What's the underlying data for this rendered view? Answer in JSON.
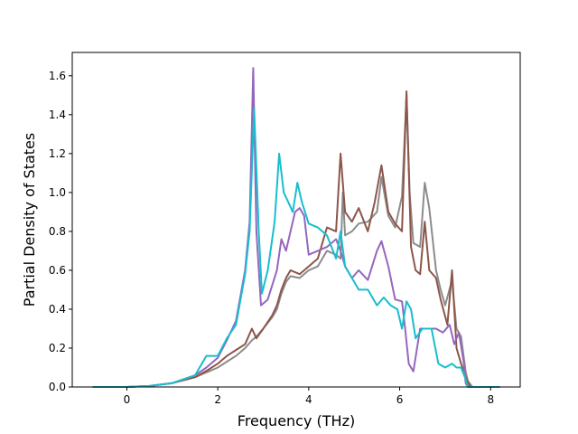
{
  "chart_data": {
    "type": "line",
    "title": "",
    "xlabel": "Frequency (THz)",
    "ylabel": "Partial Density of States",
    "xlim": [
      -1.2,
      8.65
    ],
    "ylim": [
      0.0,
      1.72
    ],
    "xticks": [
      0,
      2,
      4,
      6,
      8
    ],
    "yticks": [
      0.0,
      0.2,
      0.4,
      0.6,
      0.8,
      1.0,
      1.2,
      1.4,
      1.6
    ],
    "grid": false,
    "legend": "none",
    "series": [
      {
        "color": "#8c8c8c",
        "points": [
          [
            -0.75,
            0
          ],
          [
            0,
            0
          ],
          [
            0.5,
            0.005
          ],
          [
            1.0,
            0.02
          ],
          [
            1.5,
            0.05
          ],
          [
            1.8,
            0.08
          ],
          [
            2.0,
            0.1
          ],
          [
            2.2,
            0.13
          ],
          [
            2.4,
            0.16
          ],
          [
            2.6,
            0.2
          ],
          [
            2.75,
            0.24
          ],
          [
            2.85,
            0.26
          ],
          [
            3.0,
            0.3
          ],
          [
            3.2,
            0.36
          ],
          [
            3.3,
            0.4
          ],
          [
            3.4,
            0.48
          ],
          [
            3.5,
            0.54
          ],
          [
            3.6,
            0.57
          ],
          [
            3.8,
            0.56
          ],
          [
            4.0,
            0.6
          ],
          [
            4.2,
            0.62
          ],
          [
            4.4,
            0.7
          ],
          [
            4.6,
            0.68
          ],
          [
            4.7,
            0.66
          ],
          [
            4.75,
            1.0
          ],
          [
            4.8,
            0.78
          ],
          [
            4.95,
            0.8
          ],
          [
            5.1,
            0.84
          ],
          [
            5.3,
            0.85
          ],
          [
            5.5,
            0.9
          ],
          [
            5.6,
            1.08
          ],
          [
            5.75,
            0.88
          ],
          [
            5.9,
            0.82
          ],
          [
            6.05,
            0.98
          ],
          [
            6.15,
            1.5
          ],
          [
            6.22,
            1.0
          ],
          [
            6.3,
            0.74
          ],
          [
            6.45,
            0.72
          ],
          [
            6.55,
            1.05
          ],
          [
            6.65,
            0.92
          ],
          [
            6.8,
            0.6
          ],
          [
            6.9,
            0.5
          ],
          [
            7.0,
            0.42
          ],
          [
            7.15,
            0.55
          ],
          [
            7.25,
            0.3
          ],
          [
            7.35,
            0.26
          ],
          [
            7.45,
            0.08
          ],
          [
            7.5,
            0.03
          ],
          [
            7.6,
            0
          ],
          [
            8.2,
            0
          ]
        ]
      },
      {
        "color": "#8c564b",
        "points": [
          [
            -0.75,
            0
          ],
          [
            0,
            0
          ],
          [
            0.5,
            0.005
          ],
          [
            1.0,
            0.02
          ],
          [
            1.5,
            0.05
          ],
          [
            1.8,
            0.09
          ],
          [
            2.0,
            0.12
          ],
          [
            2.2,
            0.16
          ],
          [
            2.4,
            0.19
          ],
          [
            2.6,
            0.22
          ],
          [
            2.75,
            0.3
          ],
          [
            2.85,
            0.25
          ],
          [
            3.0,
            0.3
          ],
          [
            3.2,
            0.37
          ],
          [
            3.3,
            0.42
          ],
          [
            3.4,
            0.5
          ],
          [
            3.5,
            0.56
          ],
          [
            3.6,
            0.6
          ],
          [
            3.8,
            0.58
          ],
          [
            4.0,
            0.62
          ],
          [
            4.2,
            0.66
          ],
          [
            4.4,
            0.82
          ],
          [
            4.6,
            0.8
          ],
          [
            4.7,
            1.2
          ],
          [
            4.8,
            0.9
          ],
          [
            4.95,
            0.85
          ],
          [
            5.1,
            0.92
          ],
          [
            5.3,
            0.8
          ],
          [
            5.45,
            0.95
          ],
          [
            5.6,
            1.14
          ],
          [
            5.75,
            0.9
          ],
          [
            5.9,
            0.84
          ],
          [
            6.05,
            0.8
          ],
          [
            6.15,
            1.52
          ],
          [
            6.25,
            0.72
          ],
          [
            6.35,
            0.6
          ],
          [
            6.45,
            0.58
          ],
          [
            6.55,
            0.85
          ],
          [
            6.65,
            0.6
          ],
          [
            6.8,
            0.56
          ],
          [
            6.9,
            0.45
          ],
          [
            7.05,
            0.32
          ],
          [
            7.15,
            0.6
          ],
          [
            7.25,
            0.2
          ],
          [
            7.35,
            0.12
          ],
          [
            7.45,
            0.05
          ],
          [
            7.55,
            0
          ],
          [
            8.2,
            0
          ]
        ]
      },
      {
        "color": "#9467bd",
        "points": [
          [
            -0.75,
            0
          ],
          [
            0,
            0
          ],
          [
            0.5,
            0.005
          ],
          [
            1.0,
            0.02
          ],
          [
            1.5,
            0.06
          ],
          [
            1.75,
            0.1
          ],
          [
            2.0,
            0.15
          ],
          [
            2.2,
            0.24
          ],
          [
            2.4,
            0.34
          ],
          [
            2.6,
            0.6
          ],
          [
            2.7,
            0.85
          ],
          [
            2.78,
            1.64
          ],
          [
            2.85,
            0.8
          ],
          [
            2.95,
            0.42
          ],
          [
            3.1,
            0.45
          ],
          [
            3.3,
            0.6
          ],
          [
            3.4,
            0.76
          ],
          [
            3.5,
            0.7
          ],
          [
            3.6,
            0.8
          ],
          [
            3.7,
            0.9
          ],
          [
            3.8,
            0.92
          ],
          [
            3.9,
            0.88
          ],
          [
            4.0,
            0.68
          ],
          [
            4.2,
            0.7
          ],
          [
            4.4,
            0.72
          ],
          [
            4.6,
            0.76
          ],
          [
            4.7,
            0.7
          ],
          [
            4.8,
            0.62
          ],
          [
            4.95,
            0.56
          ],
          [
            5.1,
            0.6
          ],
          [
            5.3,
            0.55
          ],
          [
            5.5,
            0.7
          ],
          [
            5.6,
            0.75
          ],
          [
            5.75,
            0.62
          ],
          [
            5.9,
            0.45
          ],
          [
            6.05,
            0.44
          ],
          [
            6.12,
            0.3
          ],
          [
            6.2,
            0.12
          ],
          [
            6.3,
            0.08
          ],
          [
            6.45,
            0.3
          ],
          [
            6.55,
            0.3
          ],
          [
            6.65,
            0.3
          ],
          [
            6.8,
            0.3
          ],
          [
            6.95,
            0.28
          ],
          [
            7.1,
            0.32
          ],
          [
            7.2,
            0.22
          ],
          [
            7.3,
            0.28
          ],
          [
            7.4,
            0.14
          ],
          [
            7.45,
            0.02
          ],
          [
            7.5,
            0
          ],
          [
            8.2,
            0
          ]
        ]
      },
      {
        "color": "#17becf",
        "points": [
          [
            -0.75,
            0
          ],
          [
            0,
            0
          ],
          [
            0.5,
            0.005
          ],
          [
            1.0,
            0.02
          ],
          [
            1.5,
            0.06
          ],
          [
            1.75,
            0.16
          ],
          [
            2.0,
            0.16
          ],
          [
            2.2,
            0.25
          ],
          [
            2.4,
            0.32
          ],
          [
            2.6,
            0.58
          ],
          [
            2.7,
            0.8
          ],
          [
            2.8,
            1.43
          ],
          [
            2.9,
            0.8
          ],
          [
            2.97,
            0.48
          ],
          [
            3.1,
            0.6
          ],
          [
            3.25,
            0.85
          ],
          [
            3.35,
            1.2
          ],
          [
            3.45,
            1.0
          ],
          [
            3.55,
            0.95
          ],
          [
            3.65,
            0.9
          ],
          [
            3.75,
            1.05
          ],
          [
            3.85,
            0.95
          ],
          [
            4.0,
            0.84
          ],
          [
            4.2,
            0.82
          ],
          [
            4.4,
            0.78
          ],
          [
            4.6,
            0.66
          ],
          [
            4.7,
            0.8
          ],
          [
            4.8,
            0.62
          ],
          [
            4.95,
            0.56
          ],
          [
            5.1,
            0.5
          ],
          [
            5.3,
            0.5
          ],
          [
            5.5,
            0.42
          ],
          [
            5.65,
            0.46
          ],
          [
            5.8,
            0.42
          ],
          [
            5.95,
            0.4
          ],
          [
            6.05,
            0.3
          ],
          [
            6.15,
            0.44
          ],
          [
            6.25,
            0.4
          ],
          [
            6.35,
            0.25
          ],
          [
            6.5,
            0.3
          ],
          [
            6.7,
            0.3
          ],
          [
            6.85,
            0.12
          ],
          [
            7.0,
            0.1
          ],
          [
            7.15,
            0.12
          ],
          [
            7.25,
            0.1
          ],
          [
            7.35,
            0.1
          ],
          [
            7.45,
            0.04
          ],
          [
            7.5,
            0
          ],
          [
            8.2,
            0
          ]
        ]
      }
    ]
  }
}
